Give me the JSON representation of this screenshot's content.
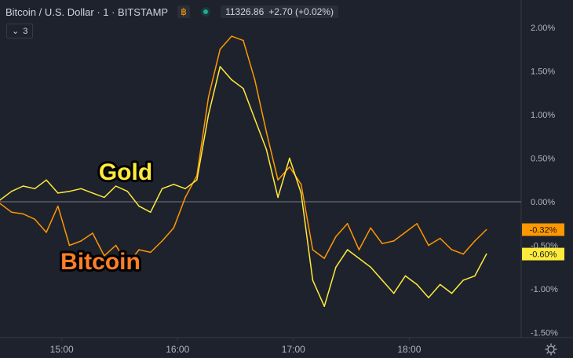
{
  "header": {
    "symbol": "Bitcoin / U.S. Dollar · 1 · BITSTAMP",
    "price": "11326.86",
    "change": "+2.70 (+0.02%)"
  },
  "indicator_toggle": {
    "chevron": "⌄",
    "count": "3"
  },
  "icons": {
    "logo": "currency-icon",
    "live": "live-dot-icon",
    "settings": "settings-gear-icon"
  },
  "colors": {
    "background": "#1e222d",
    "bitcoin": "#ff9800",
    "gold": "#ffeb3b",
    "axis_text": "#b2b5be"
  },
  "chart_data": {
    "type": "line",
    "title": "",
    "xlabel": "",
    "ylabel": "",
    "x_ticks": [
      "15:00",
      "16:00",
      "17:00",
      "18:00"
    ],
    "xlim": [
      "14:28",
      "18:58"
    ],
    "y_ticks": [
      "2.00%",
      "1.50%",
      "1.00%",
      "0.50%",
      "0.00%",
      "-0.50%",
      "-1.00%",
      "-1.50%"
    ],
    "ylim": [
      -1.5,
      2.1
    ],
    "grid": false,
    "zero_line": 0.0,
    "annotations": [
      {
        "text": "Gold",
        "series": "Gold"
      },
      {
        "text": "Bitcoin",
        "series": "Bitcoin"
      }
    ],
    "series": [
      {
        "name": "Bitcoin",
        "color": "#ff9800",
        "last_label": "-0.32%",
        "points": [
          [
            "14:28",
            -0.02
          ],
          [
            "14:34",
            -0.12
          ],
          [
            "14:40",
            -0.14
          ],
          [
            "14:46",
            -0.2
          ],
          [
            "14:52",
            -0.35
          ],
          [
            "14:58",
            -0.05
          ],
          [
            "15:04",
            -0.5
          ],
          [
            "15:10",
            -0.45
          ],
          [
            "15:16",
            -0.36
          ],
          [
            "15:22",
            -0.62
          ],
          [
            "15:28",
            -0.5
          ],
          [
            "15:34",
            -0.72
          ],
          [
            "15:40",
            -0.55
          ],
          [
            "15:46",
            -0.58
          ],
          [
            "15:52",
            -0.45
          ],
          [
            "15:58",
            -0.3
          ],
          [
            "16:04",
            0.05
          ],
          [
            "16:10",
            0.3
          ],
          [
            "16:16",
            1.2
          ],
          [
            "16:22",
            1.75
          ],
          [
            "16:28",
            1.9
          ],
          [
            "16:34",
            1.85
          ],
          [
            "16:40",
            1.4
          ],
          [
            "16:46",
            0.8
          ],
          [
            "16:52",
            0.25
          ],
          [
            "16:58",
            0.4
          ],
          [
            "17:04",
            0.2
          ],
          [
            "17:10",
            -0.55
          ],
          [
            "17:16",
            -0.65
          ],
          [
            "17:22",
            -0.4
          ],
          [
            "17:28",
            -0.25
          ],
          [
            "17:34",
            -0.55
          ],
          [
            "17:40",
            -0.3
          ],
          [
            "17:46",
            -0.48
          ],
          [
            "17:52",
            -0.45
          ],
          [
            "17:58",
            -0.35
          ],
          [
            "18:04",
            -0.25
          ],
          [
            "18:10",
            -0.5
          ],
          [
            "18:16",
            -0.42
          ],
          [
            "18:22",
            -0.55
          ],
          [
            "18:28",
            -0.6
          ],
          [
            "18:34",
            -0.45
          ],
          [
            "18:40",
            -0.32
          ]
        ]
      },
      {
        "name": "Gold",
        "color": "#ffeb3b",
        "last_label": "-0.60%",
        "points": [
          [
            "14:28",
            0.02
          ],
          [
            "14:34",
            0.12
          ],
          [
            "14:40",
            0.18
          ],
          [
            "14:46",
            0.15
          ],
          [
            "14:52",
            0.25
          ],
          [
            "14:58",
            0.1
          ],
          [
            "15:04",
            0.12
          ],
          [
            "15:10",
            0.15
          ],
          [
            "15:16",
            0.1
          ],
          [
            "15:22",
            0.05
          ],
          [
            "15:28",
            0.18
          ],
          [
            "15:34",
            0.12
          ],
          [
            "15:40",
            -0.05
          ],
          [
            "15:46",
            -0.12
          ],
          [
            "15:52",
            0.15
          ],
          [
            "15:58",
            0.2
          ],
          [
            "16:04",
            0.15
          ],
          [
            "16:10",
            0.25
          ],
          [
            "16:16",
            1.0
          ],
          [
            "16:22",
            1.55
          ],
          [
            "16:28",
            1.4
          ],
          [
            "16:34",
            1.3
          ],
          [
            "16:40",
            0.95
          ],
          [
            "16:46",
            0.6
          ],
          [
            "16:52",
            0.05
          ],
          [
            "16:58",
            0.5
          ],
          [
            "17:04",
            0.1
          ],
          [
            "17:10",
            -0.9
          ],
          [
            "17:16",
            -1.2
          ],
          [
            "17:22",
            -0.75
          ],
          [
            "17:28",
            -0.55
          ],
          [
            "17:34",
            -0.65
          ],
          [
            "17:40",
            -0.75
          ],
          [
            "17:46",
            -0.9
          ],
          [
            "17:52",
            -1.05
          ],
          [
            "17:58",
            -0.85
          ],
          [
            "18:04",
            -0.95
          ],
          [
            "18:10",
            -1.1
          ],
          [
            "18:16",
            -0.95
          ],
          [
            "18:22",
            -1.05
          ],
          [
            "18:28",
            -0.9
          ],
          [
            "18:34",
            -0.85
          ],
          [
            "18:40",
            -0.6
          ]
        ]
      }
    ]
  }
}
